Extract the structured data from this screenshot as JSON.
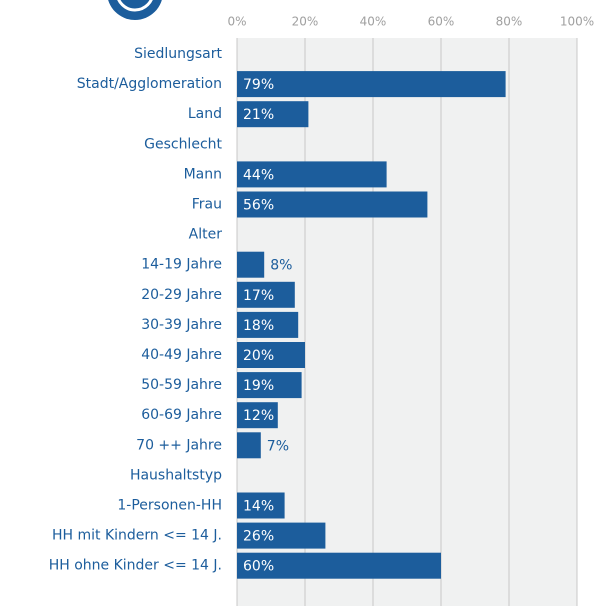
{
  "chart_data": {
    "type": "bar",
    "orientation": "horizontal",
    "categories": [
      "Siedlungsart",
      "Stadt/Agglomeration",
      "Land",
      "Geschlecht",
      "Mann",
      "Frau",
      "Alter",
      "14-19 Jahre",
      "20-29 Jahre",
      "30-39 Jahre",
      "40-49 Jahre",
      "50-59 Jahre",
      "60-69 Jahre",
      "70 ++ Jahre",
      "Haushaltstyp",
      "1-Personen-HH",
      "HH mit Kindern <= 14 J.",
      "HH ohne Kinder <= 14 J."
    ],
    "values": [
      null,
      79,
      21,
      null,
      44,
      56,
      null,
      8,
      17,
      18,
      20,
      19,
      12,
      7,
      null,
      14,
      26,
      60
    ],
    "value_labels": [
      null,
      "79%",
      "21%",
      null,
      "44%",
      "56%",
      null,
      "8%",
      "17%",
      "18%",
      "20%",
      "19%",
      "12%",
      "7%",
      null,
      "14%",
      "26%",
      "60%"
    ],
    "color": "#1c5d9c",
    "xlim": [
      0,
      100
    ],
    "xticks": [
      {
        "value": 0,
        "label": "0%"
      },
      {
        "value": 20,
        "label": "20%"
      },
      {
        "value": 40,
        "label": "40%"
      },
      {
        "value": 60,
        "label": "60%"
      },
      {
        "value": 80,
        "label": "80%"
      },
      {
        "value": 100,
        "label": "100%"
      }
    ],
    "grid": true
  }
}
